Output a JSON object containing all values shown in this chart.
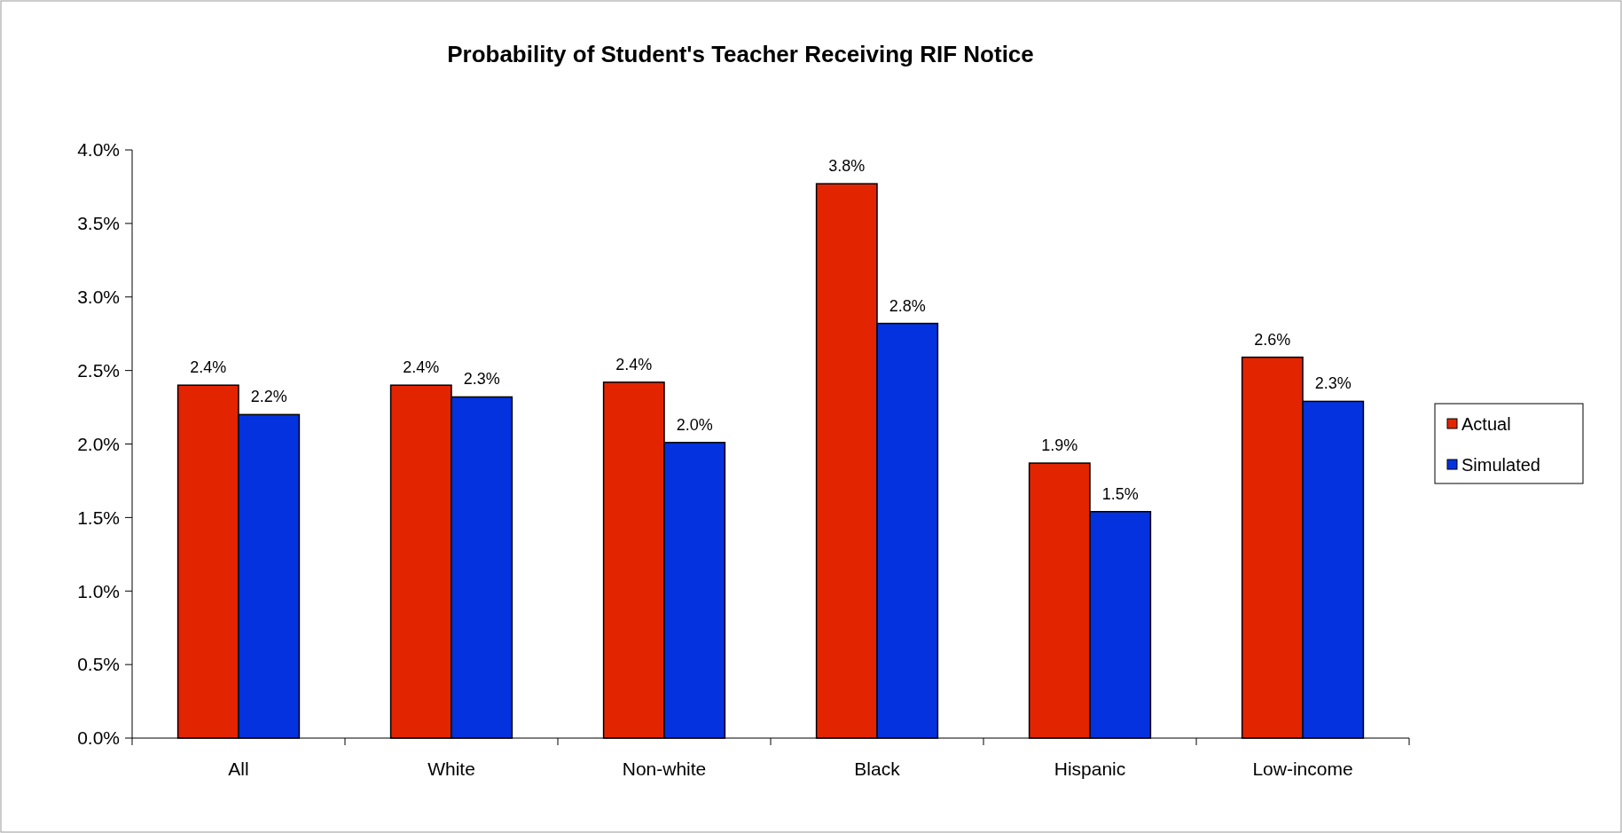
{
  "chart_data": {
    "type": "bar",
    "title": "Probability of Student's Teacher Receiving RIF Notice",
    "categories": [
      "All",
      "White",
      "Non-white",
      "Black",
      "Hispanic",
      "Low-income"
    ],
    "series": [
      {
        "name": "Actual",
        "color": "#e32400",
        "values": [
          2.4,
          2.4,
          2.42,
          3.77,
          1.87,
          2.59
        ],
        "value_labels": [
          "2.4%",
          "2.4%",
          "2.4%",
          "3.8%",
          "1.9%",
          "2.6%"
        ]
      },
      {
        "name": "Simulated",
        "color": "#0432de",
        "values": [
          2.2,
          2.32,
          2.01,
          2.82,
          1.54,
          2.29
        ],
        "value_labels": [
          "2.2%",
          "2.3%",
          "2.0%",
          "2.8%",
          "1.5%",
          "2.3%"
        ]
      }
    ],
    "ylim": [
      0,
      4
    ],
    "yticks": [
      {
        "value": 0,
        "label": "0.0%"
      },
      {
        "value": 0.5,
        "label": "0.5%"
      },
      {
        "value": 1,
        "label": "1.0%"
      },
      {
        "value": 1.5,
        "label": "1.5%"
      },
      {
        "value": 2,
        "label": "2.0%"
      },
      {
        "value": 2.5,
        "label": "2.5%"
      },
      {
        "value": 3,
        "label": "3.0%"
      },
      {
        "value": 3.5,
        "label": "3.5%"
      },
      {
        "value": 4,
        "label": "4.0%"
      }
    ],
    "legend": "right",
    "grid": false
  }
}
